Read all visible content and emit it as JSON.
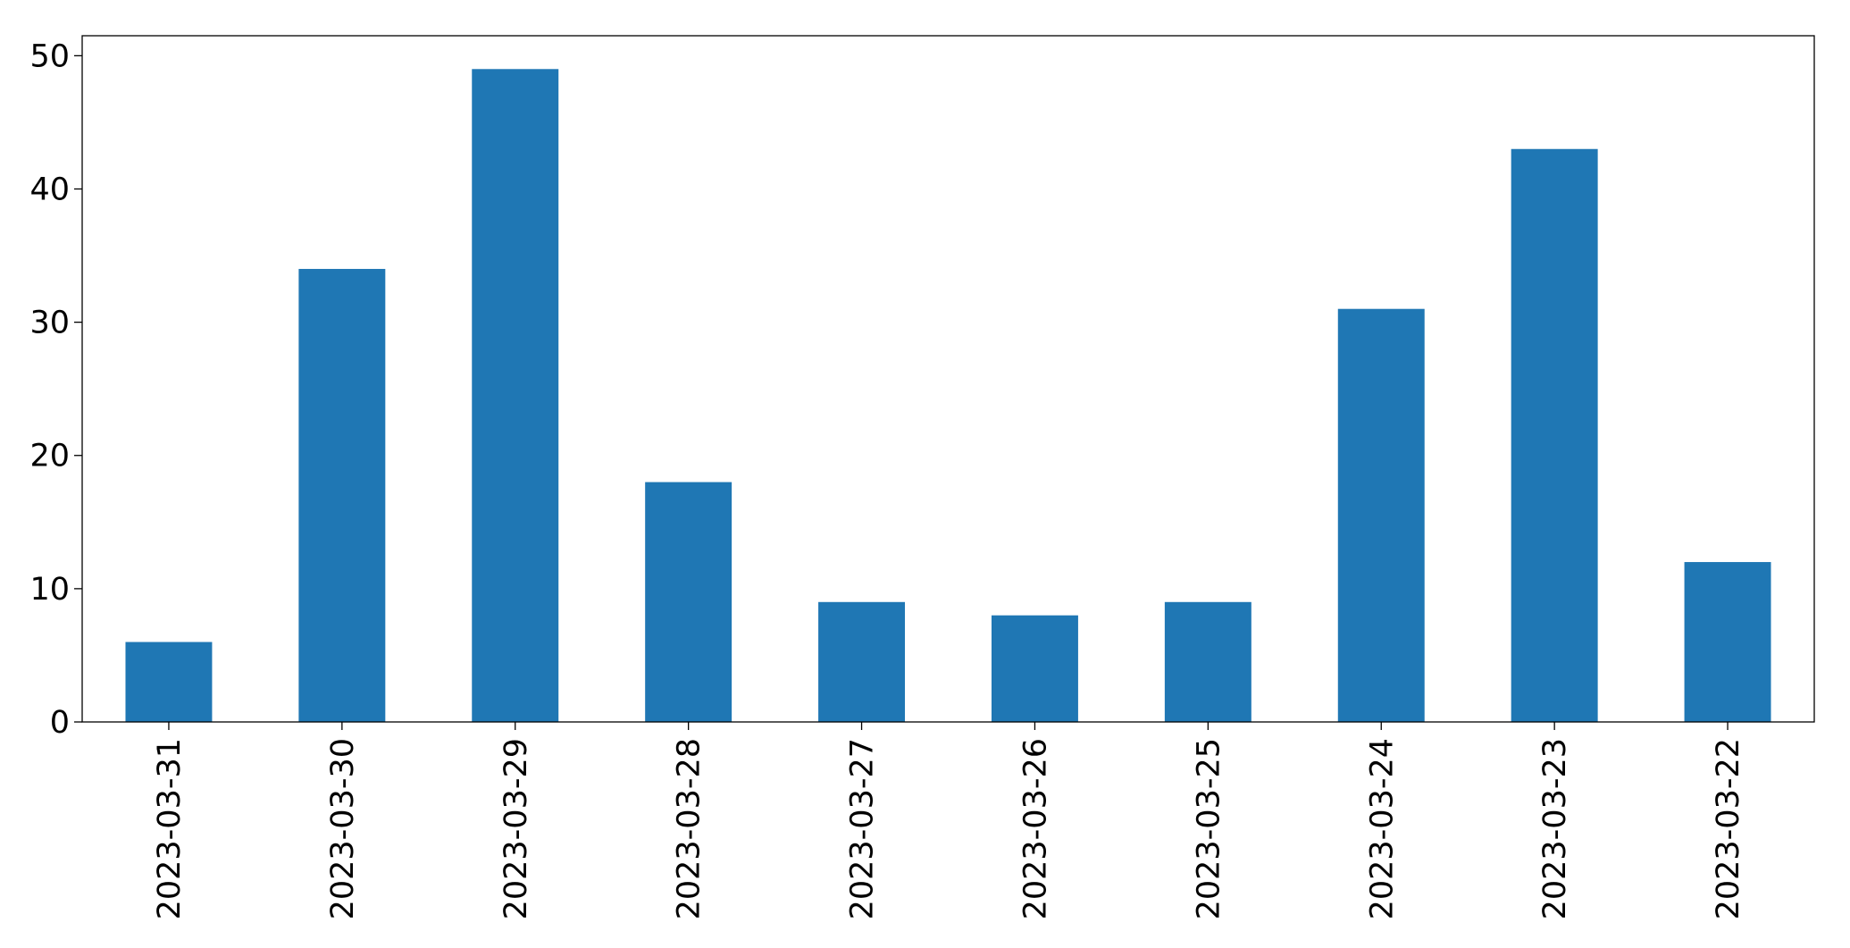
{
  "chart_data": {
    "type": "bar",
    "categories": [
      "2023-03-31",
      "2023-03-30",
      "2023-03-29",
      "2023-03-28",
      "2023-03-27",
      "2023-03-26",
      "2023-03-25",
      "2023-03-24",
      "2023-03-23",
      "2023-03-22"
    ],
    "values": [
      6,
      34,
      49,
      18,
      9,
      8,
      9,
      31,
      43,
      12
    ],
    "color": "#1f77b4",
    "ylim": [
      0,
      51.5
    ],
    "yticks": [
      0,
      10,
      20,
      30,
      40,
      50
    ],
    "grid": false
  }
}
